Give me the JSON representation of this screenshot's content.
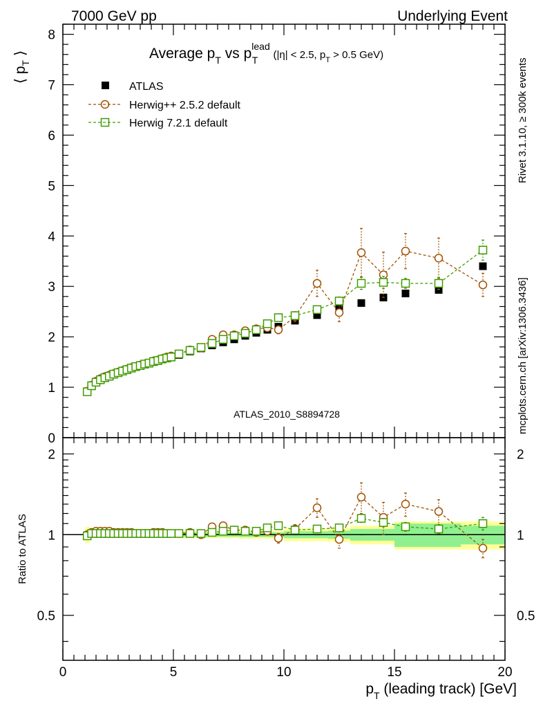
{
  "header": {
    "left": "7000 GeV pp",
    "right": "Underlying Event"
  },
  "side_labels": {
    "rivet": "Rivet 3.1.10, ≥ 300k events",
    "mcplots": "mcplots.cern.ch [arXiv:1306.3436]"
  },
  "chart_data": [
    {
      "type": "scatter",
      "title": {
        "main": "Average p",
        "sub1": "T",
        "mid": " vs p",
        "sub2": "T",
        "sup2": "lead",
        "cond_a": " (|η| < 2.5, p",
        "cond_sub": "T",
        "cond_b": " > 0.5 GeV)"
      },
      "ylabel": {
        "main": "⟨ p",
        "sub": "T",
        "close": " ⟩"
      },
      "analysis_id": "ATLAS_2010_S8894728",
      "xlim": [
        0,
        20
      ],
      "ylim": [
        0,
        8.2
      ],
      "yticks": [
        0,
        1,
        2,
        3,
        4,
        5,
        6,
        7,
        8
      ],
      "yticklabels": [
        "0",
        "1",
        "2",
        "3",
        "4",
        "5",
        "6",
        "7",
        "8"
      ],
      "legend": [
        "ATLAS",
        "Herwig++ 2.5.2 default",
        "Herwig 7.2.1 default"
      ],
      "legend_position": "top-left",
      "series": [
        {
          "name": "ATLAS",
          "marker": "square-filled",
          "color": "#000000",
          "x": [
            1.1,
            1.3,
            1.5,
            1.7,
            1.9,
            2.1,
            2.3,
            2.5,
            2.7,
            2.9,
            3.1,
            3.3,
            3.5,
            3.7,
            3.9,
            4.1,
            4.3,
            4.5,
            4.7,
            4.9,
            5.25,
            5.75,
            6.25,
            6.75,
            7.25,
            7.75,
            8.25,
            8.75,
            9.25,
            9.75,
            10.5,
            11.5,
            12.5,
            13.5,
            14.5,
            15.5,
            17.0,
            19.0
          ],
          "y": [
            0.92,
            1.02,
            1.09,
            1.14,
            1.18,
            1.21,
            1.25,
            1.28,
            1.31,
            1.34,
            1.37,
            1.4,
            1.42,
            1.45,
            1.47,
            1.5,
            1.52,
            1.55,
            1.57,
            1.59,
            1.64,
            1.71,
            1.77,
            1.83,
            1.89,
            1.95,
            2.02,
            2.08,
            2.14,
            2.2,
            2.32,
            2.43,
            2.55,
            2.67,
            2.78,
            2.86,
            2.93,
            3.4
          ]
        },
        {
          "name": "Herwig++ 2.5.2 default",
          "marker": "circle-open",
          "color": "#a05000",
          "x": [
            1.1,
            1.3,
            1.5,
            1.7,
            1.9,
            2.1,
            2.3,
            2.5,
            2.7,
            2.9,
            3.1,
            3.3,
            3.5,
            3.7,
            3.9,
            4.1,
            4.3,
            4.5,
            4.7,
            4.9,
            5.25,
            5.75,
            6.25,
            6.75,
            7.25,
            7.75,
            8.25,
            8.75,
            9.25,
            9.75,
            10.5,
            11.5,
            12.5,
            13.5,
            14.5,
            15.5,
            17.0,
            19.0
          ],
          "y": [
            0.92,
            1.04,
            1.12,
            1.17,
            1.21,
            1.24,
            1.27,
            1.3,
            1.33,
            1.36,
            1.39,
            1.41,
            1.44,
            1.46,
            1.48,
            1.52,
            1.54,
            1.57,
            1.6,
            1.62,
            1.66,
            1.74,
            1.78,
            1.95,
            2.04,
            2.04,
            2.12,
            2.16,
            2.18,
            2.14,
            2.4,
            3.06,
            2.48,
            3.67,
            3.23,
            3.7,
            3.56,
            3.03
          ],
          "yerr": [
            0.01,
            0.01,
            0.01,
            0.01,
            0.01,
            0.01,
            0.01,
            0.01,
            0.01,
            0.01,
            0.01,
            0.01,
            0.01,
            0.01,
            0.01,
            0.01,
            0.01,
            0.01,
            0.01,
            0.01,
            0.01,
            0.02,
            0.02,
            0.02,
            0.03,
            0.03,
            0.03,
            0.04,
            0.05,
            0.08,
            0.1,
            0.26,
            0.18,
            0.48,
            0.45,
            0.35,
            0.4,
            0.23
          ]
        },
        {
          "name": "Herwig 7.2.1 default",
          "marker": "square-open",
          "color": "#409a00",
          "x": [
            1.1,
            1.3,
            1.5,
            1.7,
            1.9,
            2.1,
            2.3,
            2.5,
            2.7,
            2.9,
            3.1,
            3.3,
            3.5,
            3.7,
            3.9,
            4.1,
            4.3,
            4.5,
            4.7,
            4.9,
            5.25,
            5.75,
            6.25,
            6.75,
            7.25,
            7.75,
            8.25,
            8.75,
            9.25,
            9.75,
            10.5,
            11.5,
            12.5,
            13.5,
            14.5,
            15.5,
            17.0,
            19.0
          ],
          "y": [
            0.91,
            1.03,
            1.1,
            1.15,
            1.19,
            1.22,
            1.26,
            1.29,
            1.32,
            1.35,
            1.38,
            1.41,
            1.43,
            1.46,
            1.48,
            1.51,
            1.53,
            1.56,
            1.58,
            1.6,
            1.66,
            1.73,
            1.79,
            1.87,
            1.95,
            2.02,
            2.07,
            2.14,
            2.26,
            2.38,
            2.42,
            2.54,
            2.71,
            3.06,
            3.08,
            3.06,
            3.06,
            3.72
          ],
          "yerr": [
            0.01,
            0.01,
            0.01,
            0.01,
            0.01,
            0.01,
            0.01,
            0.01,
            0.01,
            0.01,
            0.01,
            0.01,
            0.01,
            0.01,
            0.01,
            0.01,
            0.01,
            0.01,
            0.01,
            0.01,
            0.01,
            0.01,
            0.01,
            0.02,
            0.02,
            0.02,
            0.02,
            0.03,
            0.03,
            0.04,
            0.05,
            0.07,
            0.08,
            0.12,
            0.12,
            0.1,
            0.12,
            0.2
          ]
        }
      ]
    },
    {
      "type": "scatter",
      "ylabel": "Ratio to ATLAS",
      "xlabel": {
        "main": "p",
        "sub": "T",
        "rest": " (leading track) [GeV]"
      },
      "xlim": [
        0,
        20
      ],
      "ylim": [
        0.34,
        2.3
      ],
      "xticks": [
        0,
        5,
        10,
        15,
        20
      ],
      "xticklabels": [
        "0",
        "5",
        "10",
        "15",
        "20"
      ],
      "yticks": [
        0.5,
        1,
        2
      ],
      "yticklabels": [
        "0.5",
        "1",
        "2"
      ],
      "reference_line": 1,
      "bands": {
        "stat_color": "#90f090",
        "total_color": "#ffff99",
        "bins": [
          {
            "x0": 1.0,
            "x1": 1.2,
            "stat": 0.03,
            "total": 0.07
          },
          {
            "x0": 1.2,
            "x1": 5.0,
            "stat": 0.015,
            "total": 0.025
          },
          {
            "x0": 5.0,
            "x1": 8.0,
            "stat": 0.018,
            "total": 0.03
          },
          {
            "x0": 8.0,
            "x1": 10.0,
            "stat": 0.02,
            "total": 0.035
          },
          {
            "x0": 10.0,
            "x1": 12.0,
            "stat": 0.03,
            "total": 0.055
          },
          {
            "x0": 12.0,
            "x1": 13.0,
            "stat": 0.035,
            "total": 0.06
          },
          {
            "x0": 13.0,
            "x1": 15.0,
            "stat": 0.05,
            "total": 0.08
          },
          {
            "x0": 15.0,
            "x1": 18.0,
            "stat": 0.1,
            "total": 0.12
          },
          {
            "x0": 18.0,
            "x1": 20.0,
            "stat": 0.08,
            "total": 0.12
          }
        ]
      },
      "series": [
        {
          "name": "Herwig++ 2.5.2 default",
          "marker": "circle-open",
          "color": "#a05000",
          "x": [
            1.1,
            1.3,
            1.5,
            1.7,
            1.9,
            2.1,
            2.3,
            2.5,
            2.7,
            2.9,
            3.1,
            3.3,
            3.5,
            3.7,
            3.9,
            4.1,
            4.3,
            4.5,
            4.7,
            4.9,
            5.25,
            5.75,
            6.25,
            6.75,
            7.25,
            7.75,
            8.25,
            8.75,
            9.25,
            9.75,
            10.5,
            11.5,
            12.5,
            13.5,
            14.5,
            15.5,
            17.0,
            19.0
          ],
          "y": [
            1.0,
            1.02,
            1.03,
            1.03,
            1.03,
            1.03,
            1.02,
            1.02,
            1.02,
            1.02,
            1.02,
            1.01,
            1.01,
            1.01,
            1.01,
            1.02,
            1.02,
            1.02,
            1.01,
            1.01,
            1.01,
            1.02,
            1.0,
            1.07,
            1.08,
            1.04,
            1.04,
            1.02,
            1.03,
            0.97,
            1.05,
            1.26,
            0.96,
            1.38,
            1.16,
            1.3,
            1.22,
            0.89
          ],
          "yerr": [
            0.01,
            0.01,
            0.01,
            0.01,
            0.01,
            0.01,
            0.01,
            0.01,
            0.01,
            0.01,
            0.01,
            0.01,
            0.01,
            0.01,
            0.01,
            0.01,
            0.01,
            0.01,
            0.01,
            0.01,
            0.01,
            0.01,
            0.01,
            0.01,
            0.01,
            0.01,
            0.01,
            0.02,
            0.02,
            0.04,
            0.04,
            0.1,
            0.07,
            0.18,
            0.16,
            0.13,
            0.13,
            0.07
          ]
        },
        {
          "name": "Herwig 7.2.1 default",
          "marker": "square-open",
          "color": "#409a00",
          "x": [
            1.1,
            1.3,
            1.5,
            1.7,
            1.9,
            2.1,
            2.3,
            2.5,
            2.7,
            2.9,
            3.1,
            3.3,
            3.5,
            3.7,
            3.9,
            4.1,
            4.3,
            4.5,
            4.7,
            4.9,
            5.25,
            5.75,
            6.25,
            6.75,
            7.25,
            7.75,
            8.25,
            8.75,
            9.25,
            9.75,
            10.5,
            11.5,
            12.5,
            13.5,
            14.5,
            15.5,
            17.0,
            19.0
          ],
          "y": [
            0.99,
            1.01,
            1.01,
            1.01,
            1.01,
            1.01,
            1.01,
            1.01,
            1.01,
            1.01,
            1.01,
            1.01,
            1.01,
            1.01,
            1.01,
            1.01,
            1.01,
            1.01,
            1.01,
            1.01,
            1.01,
            1.01,
            1.01,
            1.02,
            1.03,
            1.04,
            1.03,
            1.03,
            1.06,
            1.08,
            1.04,
            1.05,
            1.06,
            1.15,
            1.11,
            1.07,
            1.05,
            1.1
          ],
          "yerr": [
            0.01,
            0.01,
            0.01,
            0.01,
            0.01,
            0.01,
            0.01,
            0.01,
            0.01,
            0.01,
            0.01,
            0.01,
            0.01,
            0.01,
            0.01,
            0.01,
            0.01,
            0.01,
            0.01,
            0.01,
            0.01,
            0.01,
            0.01,
            0.01,
            0.01,
            0.01,
            0.01,
            0.01,
            0.01,
            0.02,
            0.02,
            0.03,
            0.03,
            0.04,
            0.04,
            0.04,
            0.04,
            0.06
          ]
        }
      ]
    }
  ]
}
